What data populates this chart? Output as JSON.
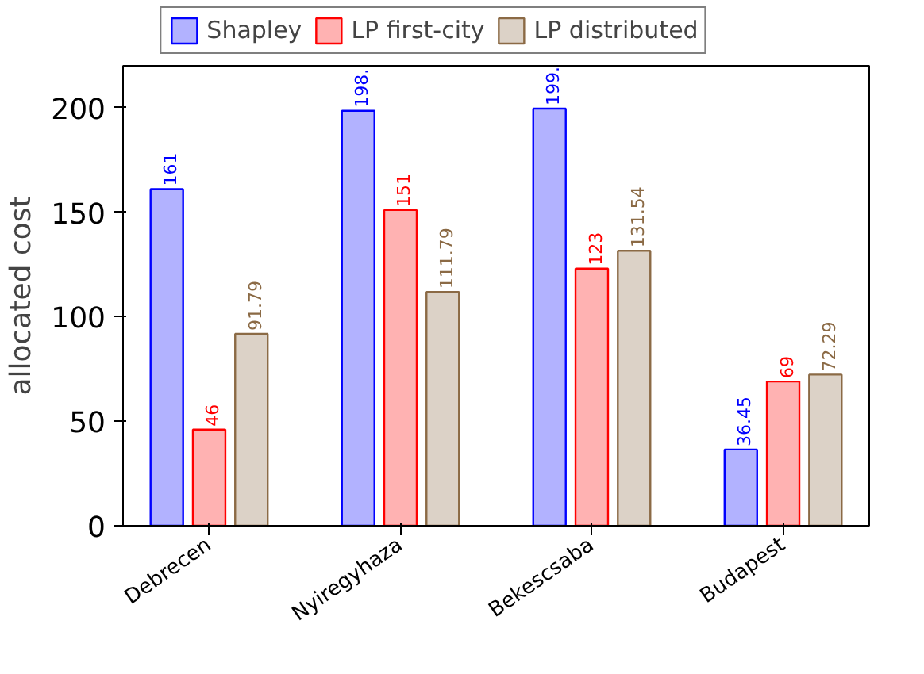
{
  "chart_data": {
    "type": "bar",
    "ylabel": "allocated cost",
    "categories": [
      "Debrecen",
      "Nyiregyhaza",
      "Bekescsaba",
      "Budapest"
    ],
    "series": [
      {
        "name": "Shapley",
        "color": "#0000ff",
        "values": [
          161,
          198.5,
          199.5,
          36.45
        ],
        "value_labels": [
          "161",
          "198.",
          "199.",
          "36.45"
        ]
      },
      {
        "name": "LP first-city",
        "color": "#ff0000",
        "values": [
          46,
          151,
          123,
          69
        ],
        "value_labels": [
          "46",
          "151",
          "123",
          "69"
        ]
      },
      {
        "name": "LP distributed",
        "color": "#8b6a45",
        "values": [
          91.79,
          111.79,
          131.54,
          72.29
        ],
        "value_labels": [
          "91.79",
          "111.79",
          "131.54",
          "72.29"
        ]
      }
    ],
    "ylim": [
      0,
      220
    ],
    "yticks": [
      0,
      50,
      100,
      150,
      200
    ],
    "grid": false,
    "legend": "top"
  }
}
